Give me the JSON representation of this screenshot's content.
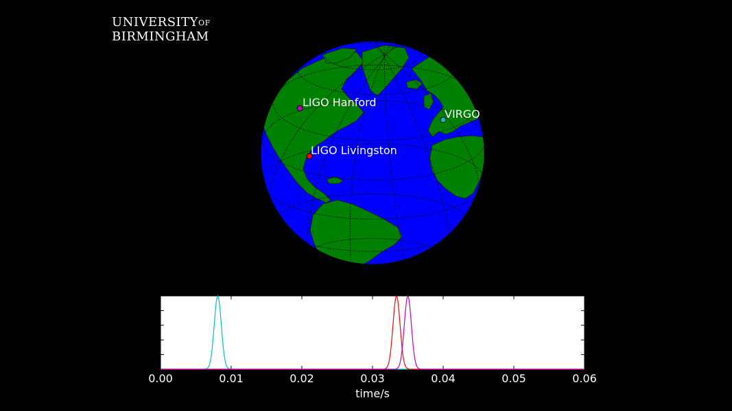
{
  "logo": {
    "line1": "UNIVERSITY",
    "of": "OF",
    "line2": "BIRMINGHAM"
  },
  "globe": {
    "ocean_color": "#0000ff",
    "land_color": "#008000",
    "sites": [
      {
        "name": "LIGO Hanford",
        "color": "#bf00bf"
      },
      {
        "name": "LIGO Livingston",
        "color": "#ff0000"
      },
      {
        "name": "VIRGO",
        "color": "#00bfbf"
      }
    ]
  },
  "chart_data": {
    "type": "line",
    "xlabel": "time/s",
    "xlim": [
      0.0,
      0.06
    ],
    "xticks": [
      "0.00",
      "0.01",
      "0.02",
      "0.03",
      "0.04",
      "0.05",
      "0.06"
    ],
    "ylim": [
      0,
      1
    ],
    "series": [
      {
        "color": "#00bfbf",
        "peak_time": 0.0081,
        "width": 0.0005
      },
      {
        "color": "#ff0000",
        "peak_time": 0.0334,
        "width": 0.0005
      },
      {
        "color": "#bf00bf",
        "peak_time": 0.035,
        "width": 0.0005
      }
    ]
  }
}
